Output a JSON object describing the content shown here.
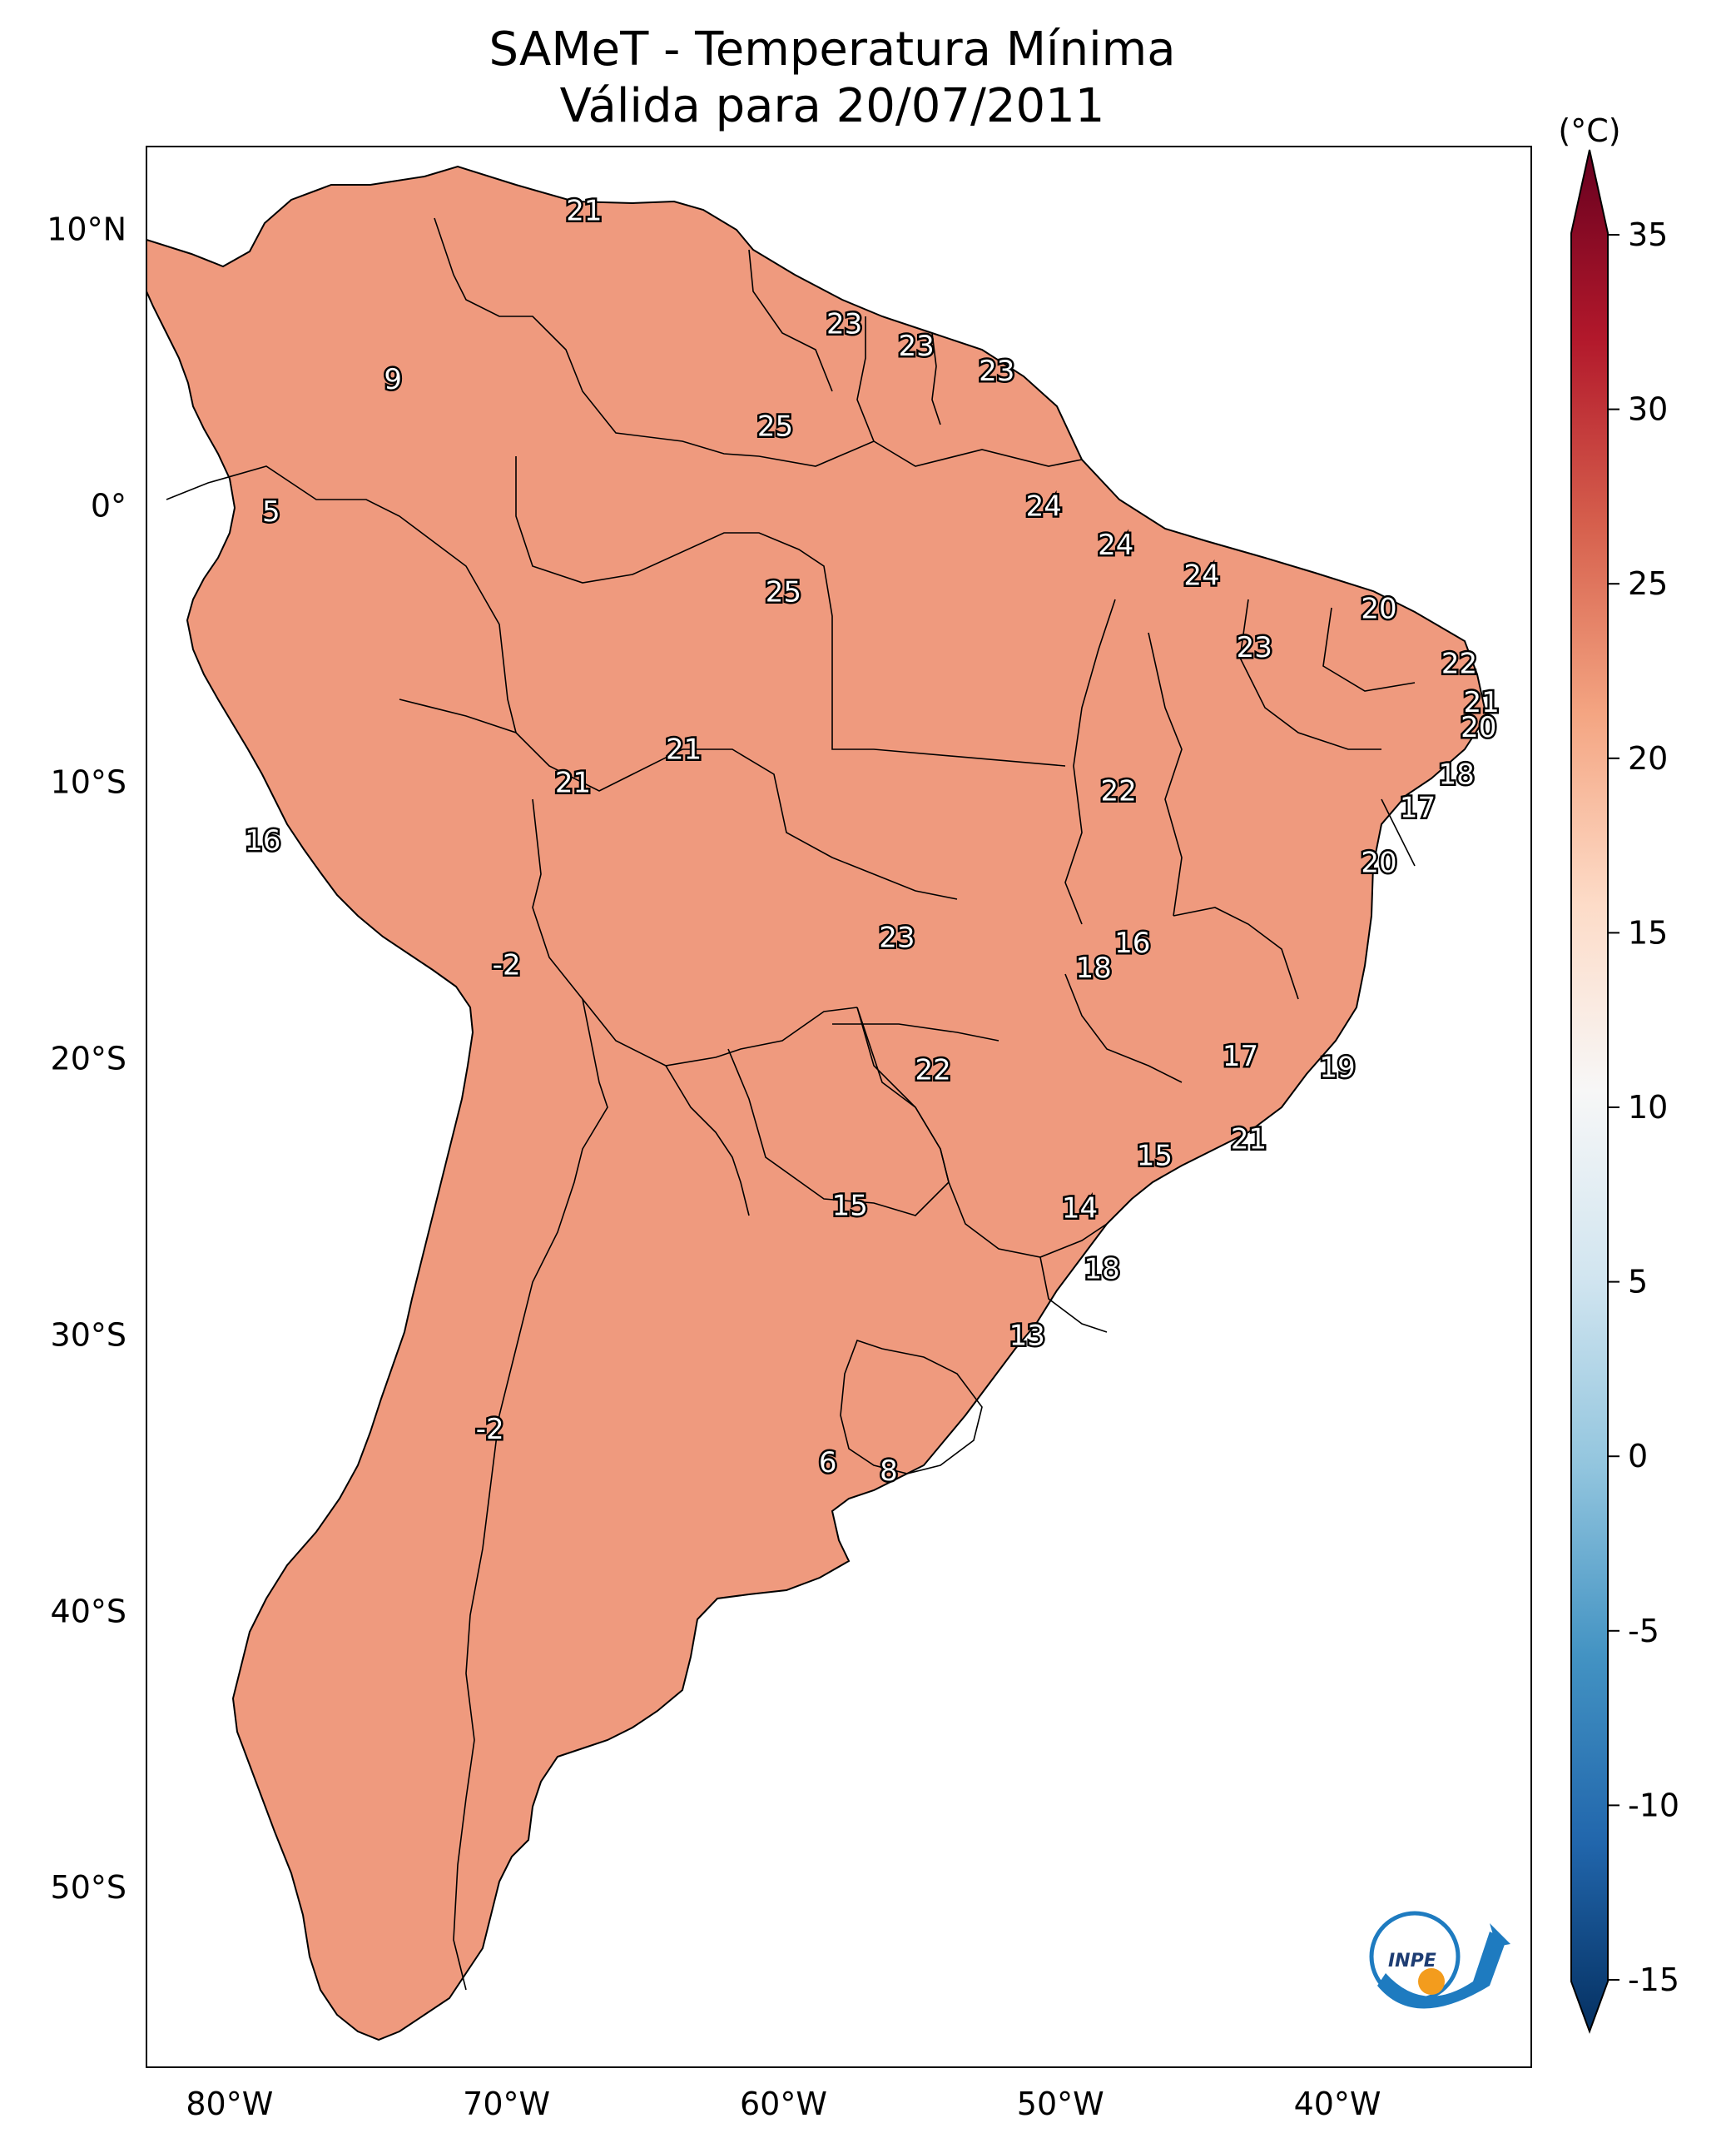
{
  "title_line1": "SAMeT - Temperatura Mínima",
  "title_line2": "Válida para 20/07/2011",
  "colorbar": {
    "unit": "(°C)",
    "ticks": [
      "35",
      "30",
      "25",
      "20",
      "15",
      "10",
      "5",
      "0",
      "-5",
      "-10",
      "-15"
    ],
    "min": -15,
    "max": 35,
    "cmap": "RdBu_r",
    "colors": [
      "#053061",
      "#2166ac",
      "#4393c3",
      "#92c5de",
      "#d1e5f0",
      "#f7f7f7",
      "#fddbc7",
      "#f4a582",
      "#d6604d",
      "#b2182b",
      "#67001f"
    ]
  },
  "axes": {
    "lon_labels": [
      "80°W",
      "70°W",
      "60°W",
      "50°W",
      "40°W"
    ],
    "lat_labels": [
      "10°N",
      "0°",
      "10°S",
      "20°S",
      "30°S",
      "40°S",
      "50°S"
    ],
    "lon_range": [
      -83,
      -33
    ],
    "lat_range": [
      -56.5,
      13
    ]
  },
  "logo": {
    "text": "INPE",
    "icon": "inpe-logo-icon"
  },
  "stations": [
    {
      "v": "21",
      "lon": -67.2,
      "lat": 10.7
    },
    {
      "v": "9",
      "lon": -74.1,
      "lat": 4.6
    },
    {
      "v": "23",
      "lon": -57.8,
      "lat": 6.6
    },
    {
      "v": "23",
      "lon": -55.2,
      "lat": 5.8
    },
    {
      "v": "23",
      "lon": -52.3,
      "lat": 4.9
    },
    {
      "v": "25",
      "lon": -60.3,
      "lat": 2.9
    },
    {
      "v": "5",
      "lon": -78.5,
      "lat": -0.2
    },
    {
      "v": "24",
      "lon": -50.6,
      "lat": 0.0
    },
    {
      "v": "24",
      "lon": -48.0,
      "lat": -1.4
    },
    {
      "v": "24",
      "lon": -44.9,
      "lat": -2.5
    },
    {
      "v": "25",
      "lon": -60.0,
      "lat": -3.1
    },
    {
      "v": "20",
      "lon": -38.5,
      "lat": -3.7
    },
    {
      "v": "23",
      "lon": -43.0,
      "lat": -5.1
    },
    {
      "v": "22",
      "lon": -35.6,
      "lat": -5.7
    },
    {
      "v": "21",
      "lon": -34.8,
      "lat": -7.1
    },
    {
      "v": "20",
      "lon": -34.9,
      "lat": -8.0
    },
    {
      "v": "21",
      "lon": -63.6,
      "lat": -8.8
    },
    {
      "v": "18",
      "lon": -35.7,
      "lat": -9.7
    },
    {
      "v": "21",
      "lon": -67.6,
      "lat": -10.0
    },
    {
      "v": "22",
      "lon": -47.9,
      "lat": -10.3
    },
    {
      "v": "17",
      "lon": -37.1,
      "lat": -10.9
    },
    {
      "v": "16",
      "lon": -78.8,
      "lat": -12.1
    },
    {
      "v": "20",
      "lon": -38.5,
      "lat": -12.9
    },
    {
      "v": "23",
      "lon": -55.9,
      "lat": -15.6
    },
    {
      "v": "16",
      "lon": -47.4,
      "lat": -15.8
    },
    {
      "v": "-2",
      "lon": -70.0,
      "lat": -16.6
    },
    {
      "v": "18",
      "lon": -48.8,
      "lat": -16.7
    },
    {
      "v": "17",
      "lon": -43.5,
      "lat": -19.9
    },
    {
      "v": "19",
      "lon": -40.0,
      "lat": -20.3
    },
    {
      "v": "22",
      "lon": -54.6,
      "lat": -20.4
    },
    {
      "v": "21",
      "lon": -43.2,
      "lat": -22.9
    },
    {
      "v": "15",
      "lon": -46.6,
      "lat": -23.5
    },
    {
      "v": "15",
      "lon": -57.6,
      "lat": -25.3
    },
    {
      "v": "14",
      "lon": -49.3,
      "lat": -25.4
    },
    {
      "v": "18",
      "lon": -48.5,
      "lat": -27.6
    },
    {
      "v": "13",
      "lon": -51.2,
      "lat": -30.0
    },
    {
      "v": "-2",
      "lon": -70.6,
      "lat": -33.4
    },
    {
      "v": "6",
      "lon": -58.4,
      "lat": -34.6
    },
    {
      "v": "8",
      "lon": -56.2,
      "lat": -34.9
    }
  ]
}
